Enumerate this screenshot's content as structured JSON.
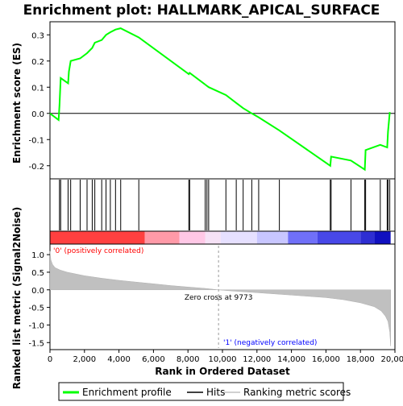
{
  "chart_data": [
    {
      "type": "line",
      "title": "Enrichment plot: HALLMARK_APICAL_SURFACE",
      "ylabel": "Enrichment score (ES)",
      "ylim": [
        -0.25,
        0.35
      ],
      "yticks": [
        "0.3",
        "0.2",
        "0.1",
        "0.0",
        "-0.1",
        "-0.2"
      ],
      "xlim": [
        0,
        20000
      ],
      "series": [
        {
          "name": "Enrichment profile",
          "color": "#00ff00",
          "x": [
            0,
            500,
            550,
            620,
            1050,
            1100,
            1200,
            1750,
            2150,
            2450,
            2600,
            3000,
            3250,
            3500,
            3800,
            4100,
            5150,
            8050,
            8100,
            9000,
            9100,
            9200,
            10200,
            10800,
            11200,
            11700,
            12100,
            13300,
            16250,
            16300,
            17450,
            18250,
            18300,
            19150,
            19550,
            19600,
            19700
          ],
          "y": [
            0.0,
            -0.025,
            0.03,
            0.135,
            0.115,
            0.16,
            0.2,
            0.21,
            0.23,
            0.25,
            0.27,
            0.28,
            0.3,
            0.31,
            0.32,
            0.325,
            0.29,
            0.15,
            0.155,
            0.11,
            0.105,
            0.1,
            0.07,
            0.04,
            0.02,
            0.0,
            -0.015,
            -0.065,
            -0.2,
            -0.165,
            -0.18,
            -0.215,
            -0.14,
            -0.12,
            -0.13,
            -0.07,
            0.005
          ]
        }
      ]
    },
    {
      "type": "barcode",
      "name": "Hits",
      "hit_positions": [
        550,
        620,
        1050,
        1200,
        1750,
        2150,
        2450,
        2600,
        3000,
        3250,
        3500,
        3800,
        4100,
        5150,
        8050,
        8100,
        9000,
        9100,
        9200,
        10200,
        10800,
        11200,
        11700,
        12100,
        13300,
        16250,
        16300,
        17450,
        18250,
        18300,
        19150,
        19550,
        19600,
        19700
      ]
    },
    {
      "type": "heatmap",
      "name": "ranking color band",
      "segments": [
        {
          "from": 0,
          "to": 5500,
          "color": "#ff4040"
        },
        {
          "from": 5500,
          "to": 7500,
          "color": "#ff9aa8"
        },
        {
          "from": 7500,
          "to": 9000,
          "color": "#ffc8e6"
        },
        {
          "from": 9000,
          "to": 9900,
          "color": "#f6e2f6"
        },
        {
          "from": 9900,
          "to": 12000,
          "color": "#e6e0ff"
        },
        {
          "from": 12000,
          "to": 13800,
          "color": "#c8c6ff"
        },
        {
          "from": 13800,
          "to": 15500,
          "color": "#7070f8"
        },
        {
          "from": 15500,
          "to": 18000,
          "color": "#4848e8"
        },
        {
          "from": 18000,
          "to": 18800,
          "color": "#2e2ed2"
        },
        {
          "from": 18800,
          "to": 19750,
          "color": "#1010c0"
        }
      ]
    },
    {
      "type": "area",
      "ylabel": "Ranked list metric (Signal2Noise)",
      "xlabel": "Rank in Ordered Dataset",
      "ylim": [
        -1.7,
        1.3
      ],
      "yticks": [
        "1.0",
        "0.5",
        "0.0",
        "-0.5",
        "-1.0",
        "-1.5"
      ],
      "xticks": [
        "0",
        "2,000",
        "4,000",
        "6,000",
        "8,000",
        "10,000",
        "12,000",
        "14,000",
        "16,000",
        "18,000",
        "20,000"
      ],
      "series": [
        {
          "name": "Ranking metric scores",
          "color": "#c0c0c0",
          "x": [
            0,
            50,
            150,
            300,
            600,
            1000,
            2000,
            3000,
            4000,
            5000,
            6000,
            7000,
            8000,
            9000,
            9773,
            10500,
            12000,
            14000,
            16000,
            17000,
            18000,
            18800,
            19200,
            19450,
            19600,
            19700,
            19750
          ],
          "y": [
            1.1,
            0.85,
            0.72,
            0.63,
            0.56,
            0.5,
            0.4,
            0.33,
            0.27,
            0.22,
            0.17,
            0.12,
            0.08,
            0.04,
            0.0,
            -0.03,
            -0.08,
            -0.15,
            -0.22,
            -0.28,
            -0.37,
            -0.48,
            -0.6,
            -0.75,
            -0.9,
            -1.2,
            -1.6
          ]
        }
      ],
      "annotations": {
        "zero_cross": "Zero cross at 9773",
        "zero_cross_rank": 9773,
        "pos_label": "'0' (positively correlated)",
        "neg_label": "'1' (negatively correlated)",
        "pos_color": "#ff0000",
        "neg_color": "#0000ff"
      }
    }
  ],
  "legend": {
    "items": [
      {
        "label": "Enrichment profile",
        "color": "#00ff00"
      },
      {
        "label": "Hits",
        "color": "#000000"
      },
      {
        "label": "Ranking metric scores",
        "color": "#c0c0c0"
      }
    ]
  }
}
